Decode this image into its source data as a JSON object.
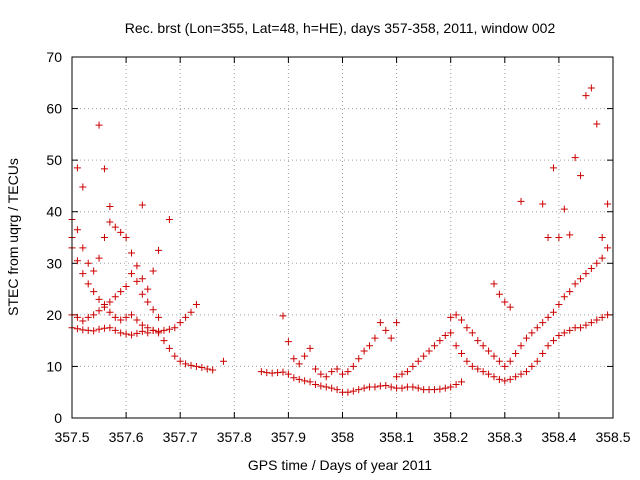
{
  "chart_data": {
    "type": "scatter",
    "title": "Rec. brst (Lon=355, Lat=48, h=HE), days 357-358, 2011, window 002",
    "xlabel": "GPS time / Days of year 2011",
    "ylabel": "STEC from uqrg / TECUs",
    "xlim": [
      357.5,
      358.5
    ],
    "ylim": [
      0,
      70
    ],
    "xticks": [
      357.5,
      357.6,
      357.7,
      357.8,
      357.9,
      358,
      358.1,
      358.2,
      358.3,
      358.4,
      358.5
    ],
    "xtick_labels": [
      "357.5",
      "357.6",
      "357.7",
      "357.8",
      "357.9",
      "358",
      "358.1",
      "358.2",
      "358.3",
      "358.4",
      "358.5"
    ],
    "yticks": [
      0,
      10,
      20,
      30,
      40,
      50,
      60,
      70
    ],
    "ytick_labels": [
      "0",
      "10",
      "20",
      "30",
      "40",
      "50",
      "60",
      "70"
    ],
    "grid": true,
    "marker": "+",
    "color": "#cc0000",
    "series": [
      {
        "name": "track-1",
        "x": [
          357.5,
          357.51,
          357.52,
          357.53,
          357.54,
          357.55,
          357.56,
          357.57,
          357.58,
          357.59,
          357.6,
          357.61,
          357.62,
          357.63,
          357.64,
          357.65,
          357.66,
          357.67,
          357.68,
          357.69,
          357.7,
          357.71,
          357.72,
          357.73,
          357.74,
          357.75,
          357.76,
          357.78
        ],
        "y": [
          17.5,
          17.3,
          17.1,
          17.0,
          16.9,
          17.2,
          17.4,
          17.5,
          17.0,
          16.5,
          16.3,
          16.1,
          16.4,
          16.8,
          16.5,
          17.0,
          16.5,
          15.0,
          13.5,
          12.0,
          11.0,
          10.5,
          10.2,
          10.0,
          9.8,
          9.5,
          9.3,
          11.0
        ]
      },
      {
        "name": "track-2",
        "x": [
          357.5,
          357.51,
          357.52,
          357.53,
          357.54,
          357.55,
          357.56,
          357.57,
          357.58,
          357.59,
          357.6,
          357.61,
          357.62,
          357.63,
          357.64,
          357.65,
          357.66,
          357.67,
          357.68,
          357.69,
          357.7,
          357.71,
          357.72,
          357.73
        ],
        "y": [
          20.0,
          19.5,
          18.8,
          19.5,
          20.0,
          20.8,
          21.5,
          20.5,
          19.5,
          19.0,
          19.5,
          20.0,
          19.0,
          18.0,
          17.5,
          17.0,
          16.8,
          17.0,
          17.2,
          17.5,
          18.5,
          19.5,
          20.5,
          22.0
        ]
      },
      {
        "name": "track-3",
        "x": [
          357.5,
          357.51,
          357.52,
          357.53,
          357.54,
          357.55,
          357.56,
          357.57,
          357.58,
          357.59,
          357.6,
          357.61,
          357.62,
          357.63,
          357.64,
          357.65,
          357.66
        ],
        "y": [
          33.0,
          30.5,
          28.0,
          26.0,
          24.5,
          23.0,
          22.0,
          22.5,
          23.5,
          24.5,
          25.5,
          28.0,
          26.5,
          24.0,
          22.5,
          21.0,
          19.5
        ]
      },
      {
        "name": "track-4",
        "x": [
          357.5,
          357.51,
          357.52,
          357.53,
          357.54,
          357.55,
          357.56,
          357.57,
          357.58,
          357.59,
          357.6,
          357.61,
          357.62,
          357.63,
          357.64,
          357.65,
          357.66
        ],
        "y": [
          38.5,
          36.5,
          33.0,
          30.0,
          28.5,
          31.0,
          35.0,
          38.0,
          37.0,
          36.0,
          35.0,
          32.0,
          29.5,
          27.0,
          25.0,
          28.5,
          32.5
        ]
      },
      {
        "name": "track-5",
        "x": [
          357.5,
          357.51,
          357.52,
          357.55,
          357.56,
          357.57,
          357.63,
          357.68
        ],
        "y": [
          35.0,
          48.5,
          44.8,
          56.8,
          48.3,
          41.0,
          41.3,
          38.5
        ]
      },
      {
        "name": "track-6",
        "x": [
          357.85,
          357.86,
          357.87,
          357.88,
          357.89,
          357.9,
          357.91,
          357.92,
          357.93,
          357.94,
          357.95,
          357.96,
          357.97,
          357.98,
          357.99,
          358.0,
          358.01,
          358.02,
          358.03,
          358.04,
          358.05,
          358.06,
          358.07,
          358.08,
          358.09,
          358.1,
          358.11,
          358.12,
          358.13,
          358.14,
          358.15,
          358.16,
          358.17,
          358.18,
          358.19,
          358.2,
          358.21,
          358.22
        ],
        "y": [
          9.0,
          8.8,
          8.7,
          8.8,
          8.9,
          8.5,
          7.8,
          7.5,
          7.2,
          7.0,
          6.5,
          6.2,
          6.0,
          5.8,
          5.5,
          5.0,
          5.0,
          5.2,
          5.5,
          5.8,
          6.0,
          6.0,
          6.2,
          6.3,
          6.0,
          5.8,
          5.8,
          6.0,
          6.0,
          5.8,
          5.5,
          5.5,
          5.5,
          5.6,
          5.8,
          6.0,
          6.5,
          7.0
        ]
      },
      {
        "name": "track-7",
        "x": [
          357.89,
          357.9,
          357.91,
          357.92,
          357.93,
          357.94,
          357.95,
          357.96,
          357.97,
          357.98,
          357.99,
          358.0,
          358.01,
          358.02,
          358.03,
          358.04,
          358.05,
          358.06,
          358.07,
          358.08,
          358.09,
          358.1
        ],
        "y": [
          19.8,
          14.8,
          11.5,
          10.5,
          12.0,
          13.5,
          9.5,
          8.5,
          8.0,
          9.0,
          9.5,
          8.5,
          9.0,
          10.0,
          11.5,
          13.0,
          14.0,
          15.5,
          18.5,
          17.0,
          15.5,
          18.5
        ]
      },
      {
        "name": "track-8",
        "x": [
          358.1,
          358.11,
          358.12,
          358.13,
          358.14,
          358.15,
          358.16,
          358.17,
          358.18,
          358.19,
          358.2,
          358.21,
          358.22,
          358.23,
          358.24,
          358.25,
          358.26,
          358.27,
          358.28,
          358.29,
          358.3,
          358.31,
          358.32,
          358.33,
          358.34,
          358.35,
          358.36,
          358.37,
          358.38,
          358.39,
          358.4,
          358.41,
          358.42,
          358.43,
          358.44,
          358.45,
          358.46,
          358.47,
          358.48,
          358.49
        ],
        "y": [
          8.0,
          8.5,
          9.0,
          10.0,
          11.0,
          12.0,
          13.0,
          14.0,
          15.0,
          16.0,
          16.5,
          14.0,
          12.5,
          11.0,
          10.0,
          9.5,
          9.0,
          8.5,
          8.0,
          7.5,
          7.2,
          7.5,
          8.0,
          8.5,
          9.0,
          10.0,
          11.0,
          12.5,
          14.0,
          15.0,
          16.0,
          16.5,
          17.0,
          17.5,
          17.5,
          18.0,
          18.5,
          19.0,
          19.5,
          20.0
        ]
      },
      {
        "name": "track-9",
        "x": [
          358.2,
          358.21,
          358.22,
          358.23,
          358.24,
          358.25,
          358.26,
          358.27,
          358.28,
          358.29,
          358.3,
          358.31,
          358.32,
          358.33,
          358.34,
          358.35,
          358.36,
          358.37,
          358.38,
          358.39,
          358.4,
          358.41,
          358.42,
          358.43,
          358.44,
          358.45,
          358.46,
          358.47,
          358.48,
          358.49
        ],
        "y": [
          19.5,
          20.0,
          19.0,
          17.5,
          16.5,
          15.0,
          14.0,
          13.0,
          12.0,
          11.0,
          10.0,
          11.0,
          12.5,
          14.0,
          15.5,
          16.5,
          17.5,
          18.5,
          19.5,
          20.5,
          22.0,
          23.5,
          24.5,
          26.0,
          27.0,
          28.0,
          29.0,
          30.0,
          31.0,
          33.0
        ]
      },
      {
        "name": "track-10",
        "x": [
          358.28,
          358.29,
          358.3,
          358.31,
          358.33,
          358.37,
          358.38,
          358.39,
          358.4,
          358.41,
          358.42,
          358.43,
          358.44,
          358.45,
          358.46,
          358.47,
          358.48,
          358.49
        ],
        "y": [
          26.0,
          24.0,
          22.5,
          21.5,
          42.0,
          41.5,
          35.0,
          48.5,
          35.0,
          40.5,
          35.5,
          50.5,
          47.0,
          62.5,
          64.0,
          57.0,
          35.0,
          41.5
        ]
      }
    ]
  }
}
